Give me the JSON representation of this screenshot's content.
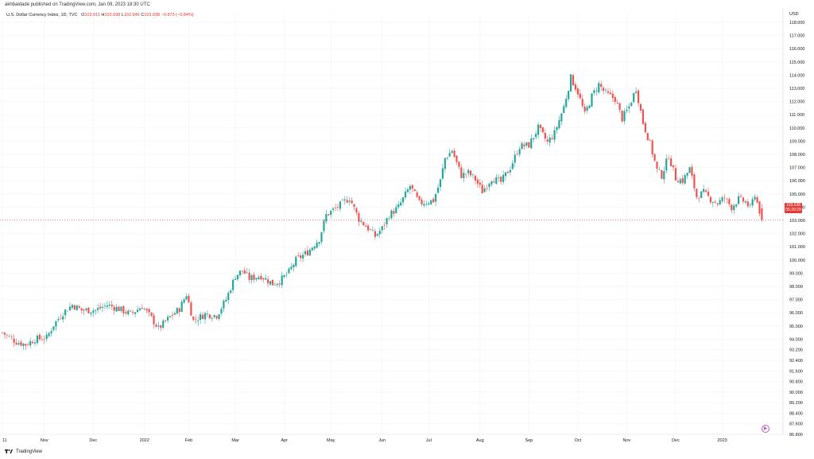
{
  "header": {
    "published_text": "akhbaldade published on TradingView.com, Jan 09, 2023 18:30 UTC"
  },
  "legend": {
    "symbol_text": "U.S. Dollar Currency Index, 1D, TVC",
    "o_label": "O",
    "o_value": "103.911",
    "h_label": "H",
    "h_value": "103.938",
    "l_label": "L",
    "l_value": "102.946",
    "c_label": "C",
    "c_value": "103.038",
    "change_text": "−0.873 (−0.84%)"
  },
  "price_badge": {
    "price": "103.038",
    "countdown": "05:29:29"
  },
  "footer": {
    "logo_text": "TradingView"
  },
  "colors": {
    "up": "#26a69a",
    "down": "#ef5350",
    "grid": "#f0f3fa",
    "last_price_line": "#ef5350"
  },
  "chart_data": {
    "type": "candlestick",
    "title": "",
    "xlabel": "",
    "ylabel": "USD",
    "ylim": [
      86.8,
      118.6
    ],
    "y_axis_unit": "USD",
    "y_ticks": [
      118.0,
      117.0,
      116.0,
      115.0,
      114.0,
      113.0,
      112.0,
      111.0,
      110.0,
      109.0,
      108.0,
      107.0,
      106.0,
      105.0,
      104.0,
      103.0,
      102.0,
      101.0,
      100.0,
      99.0,
      98.0,
      97.0,
      96.0,
      95.0,
      94.0,
      93.2,
      92.4,
      91.6,
      90.8,
      90.0,
      89.2,
      88.4,
      87.6,
      86.8
    ],
    "y_tick_labels": [
      "118.000",
      "117.000",
      "116.000",
      "115.000",
      "114.000",
      "113.000",
      "112.000",
      "111.000",
      "110.000",
      "109.000",
      "108.000",
      "107.000",
      "106.000",
      "105.000",
      "104.000",
      "103.000",
      "102.000",
      "101.000",
      "100.000",
      "99.000",
      "98.000",
      "97.000",
      "96.000",
      "95.000",
      "94.000",
      "93.200",
      "92.400",
      "91.600",
      "90.800",
      "90.000",
      "89.200",
      "88.400",
      "87.600",
      "86.800"
    ],
    "x_tick_labels": [
      "11",
      "Nov",
      "Dec",
      "2022",
      "Feb",
      "Mar",
      "Apr",
      "May",
      "Jun",
      "Jul",
      "Aug",
      "Sep",
      "Oct",
      "Nov",
      "Dec",
      "2023"
    ],
    "x_tick_positions": [
      0,
      18,
      39,
      61,
      80,
      100,
      121,
      141,
      163,
      183,
      205,
      226,
      247,
      268,
      289,
      309
    ],
    "last_price": 103.038,
    "series_path": [
      [
        0,
        94.5
      ],
      [
        6,
        93.8
      ],
      [
        10,
        93.6
      ],
      [
        14,
        94.0
      ],
      [
        19,
        94.1
      ],
      [
        22,
        95.1
      ],
      [
        26,
        96.0
      ],
      [
        30,
        96.6
      ],
      [
        34,
        96.2
      ],
      [
        40,
        96.2
      ],
      [
        45,
        96.6
      ],
      [
        50,
        96.3
      ],
      [
        55,
        95.9
      ],
      [
        60,
        96.5
      ],
      [
        64,
        95.6
      ],
      [
        67,
        94.8
      ],
      [
        72,
        95.7
      ],
      [
        76,
        96.3
      ],
      [
        79,
        97.4
      ],
      [
        82,
        95.4
      ],
      [
        87,
        95.9
      ],
      [
        92,
        95.8
      ],
      [
        96,
        97.0
      ],
      [
        100,
        98.8
      ],
      [
        103,
        99.2
      ],
      [
        106,
        98.6
      ],
      [
        111,
        98.8
      ],
      [
        116,
        98.2
      ],
      [
        119,
        98.4
      ],
      [
        123,
        99.1
      ],
      [
        126,
        100.0
      ],
      [
        131,
        100.6
      ],
      [
        136,
        101.6
      ],
      [
        139,
        103.4
      ],
      [
        143,
        103.9
      ],
      [
        149,
        104.7
      ],
      [
        153,
        103.1
      ],
      [
        157,
        102.4
      ],
      [
        160,
        101.8
      ],
      [
        163,
        102.4
      ],
      [
        166,
        103.4
      ],
      [
        170,
        104.0
      ],
      [
        175,
        105.6
      ],
      [
        179,
        104.3
      ],
      [
        182,
        104.4
      ],
      [
        185,
        104.5
      ],
      [
        188,
        106.0
      ],
      [
        190,
        107.7
      ],
      [
        193,
        108.3
      ],
      [
        197,
        106.4
      ],
      [
        200,
        106.6
      ],
      [
        203,
        106.1
      ],
      [
        206,
        105.2
      ],
      [
        210,
        106.2
      ],
      [
        214,
        105.9
      ],
      [
        218,
        107.0
      ],
      [
        222,
        108.6
      ],
      [
        226,
        108.7
      ],
      [
        230,
        110.0
      ],
      [
        234,
        108.9
      ],
      [
        237,
        109.6
      ],
      [
        241,
        111.6
      ],
      [
        244,
        113.8
      ],
      [
        247,
        112.7
      ],
      [
        250,
        111.0
      ],
      [
        253,
        112.4
      ],
      [
        256,
        113.3
      ],
      [
        259,
        112.6
      ],
      [
        263,
        112.2
      ],
      [
        266,
        110.7
      ],
      [
        269,
        111.6
      ],
      [
        272,
        113.0
      ],
      [
        275,
        110.4
      ],
      [
        278,
        108.8
      ],
      [
        281,
        106.8
      ],
      [
        283,
        106.4
      ],
      [
        286,
        107.9
      ],
      [
        289,
        106.2
      ],
      [
        292,
        106.0
      ],
      [
        295,
        106.9
      ],
      [
        298,
        104.8
      ],
      [
        301,
        105.1
      ],
      [
        304,
        104.6
      ],
      [
        307,
        104.3
      ],
      [
        310,
        104.7
      ],
      [
        313,
        104.0
      ],
      [
        316,
        104.6
      ],
      [
        319,
        104.4
      ],
      [
        321,
        103.9
      ],
      [
        323,
        105.0
      ],
      [
        326,
        103.038
      ]
    ]
  }
}
